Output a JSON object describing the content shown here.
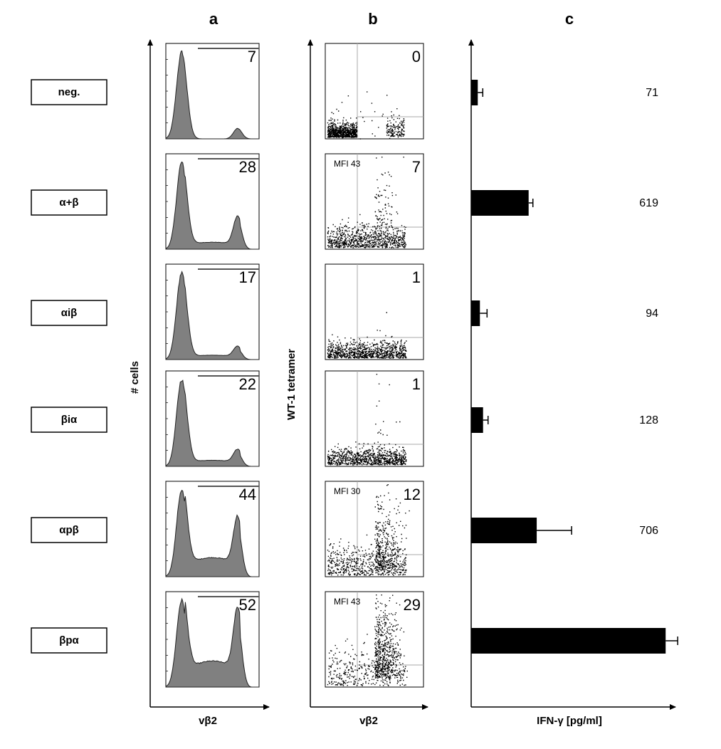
{
  "chart_data": [
    {
      "type": "histogram-panel",
      "panel_label": "a",
      "y_label": "# cells",
      "x_label": "vβ2",
      "percentages": [
        7,
        28,
        17,
        22,
        44,
        52
      ]
    },
    {
      "type": "scatter-panel",
      "panel_label": "b",
      "y_label": "WT-1 tetramer",
      "x_label": "vβ2",
      "percentages": [
        0,
        7,
        1,
        1,
        12,
        29
      ],
      "mfi_label": "MFI",
      "mfi": [
        null,
        43,
        null,
        null,
        30,
        43
      ]
    },
    {
      "type": "bar",
      "panel_label": "c",
      "x_label": "IFN-γ [pg/ml]",
      "categories": [
        "neg.",
        "α+β",
        "αiβ",
        "βiα",
        "αpβ",
        "βpα"
      ],
      "values": [
        71,
        619,
        94,
        128,
        706,
        2095
      ],
      "errors": [
        54,
        46,
        77,
        54,
        376,
        130
      ],
      "color": "#000000",
      "xlim": [
        0,
        2170
      ]
    }
  ]
}
